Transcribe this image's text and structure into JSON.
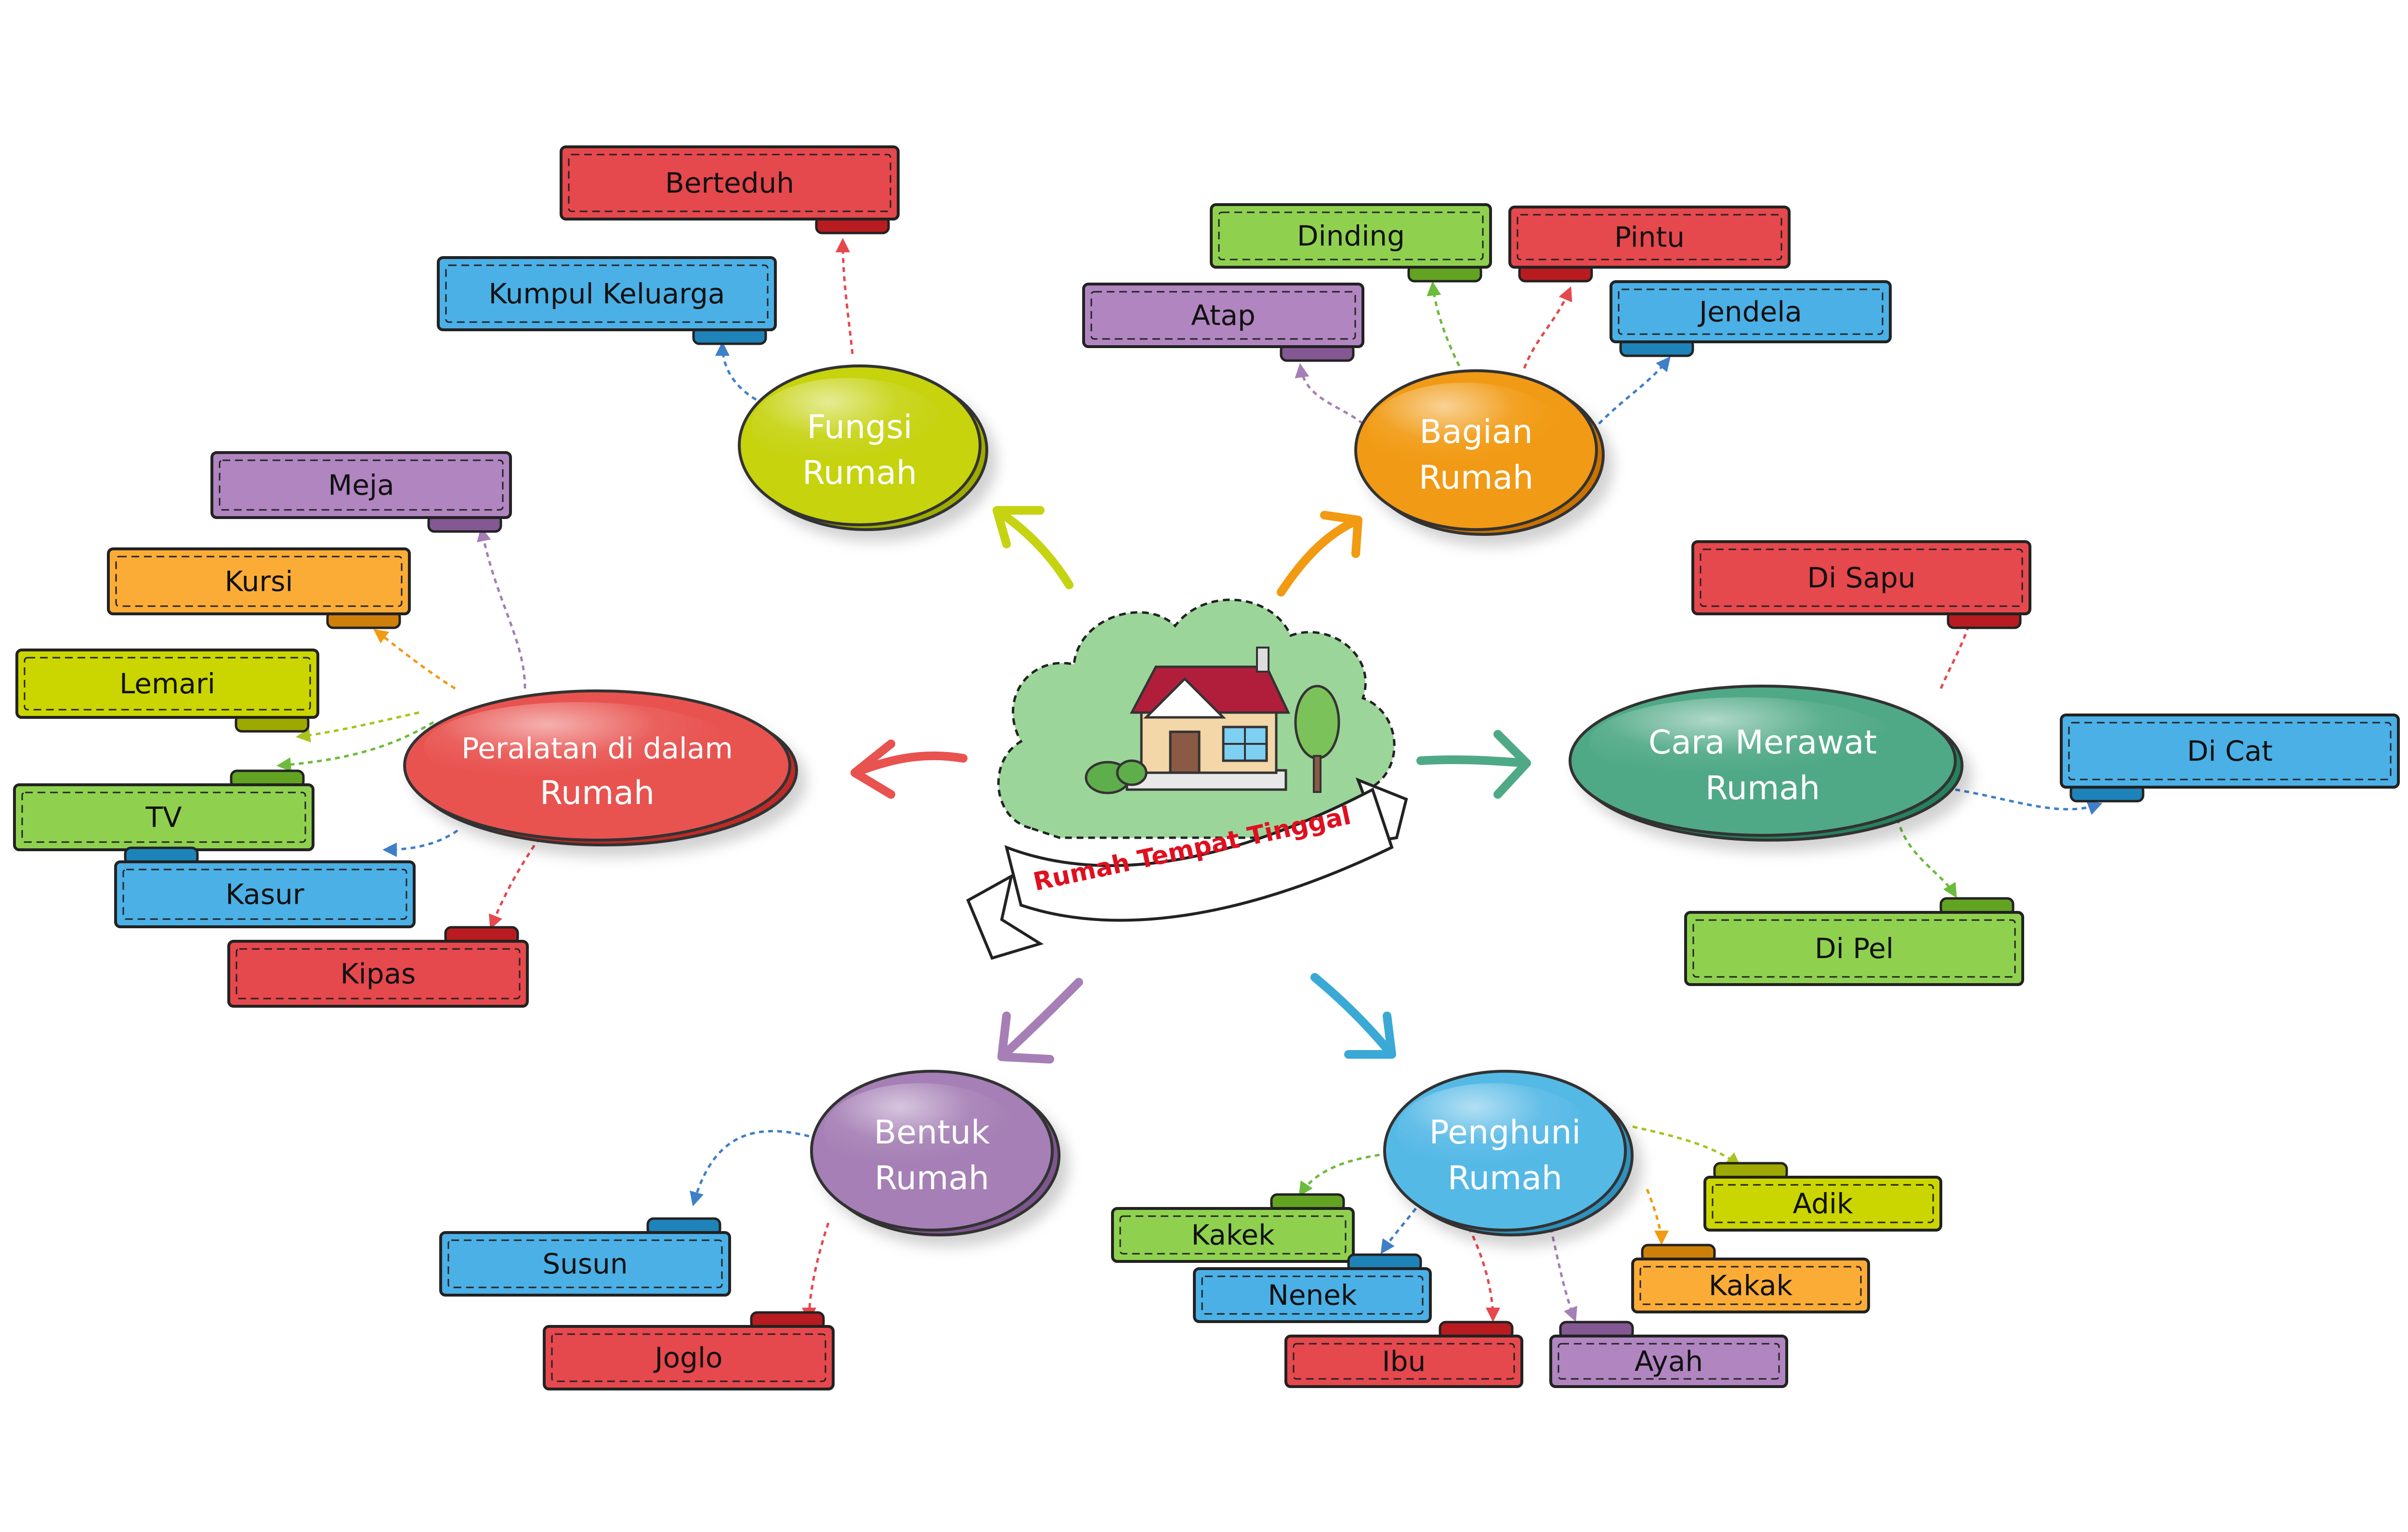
{
  "title": "Rumah Tempat Tinggal",
  "colors": {
    "red": "#e5484d",
    "blue": "#4bb0e6",
    "green": "#8fd14f",
    "purple": "#b085c0",
    "orange": "#fbac37",
    "lime": "#cbd600",
    "outline": "#222222"
  },
  "branches": {
    "fungsi": {
      "line1": "Fungsi",
      "line2": "Rumah",
      "color": "#c6d311",
      "leaves": [
        {
          "label": "Berteduh",
          "color": "red"
        },
        {
          "label": "Kumpul Keluarga",
          "color": "blue"
        }
      ]
    },
    "bagian": {
      "line1": "Bagian",
      "line2": "Rumah",
      "color": "#f19a12",
      "leaves": [
        {
          "label": "Dinding",
          "color": "green"
        },
        {
          "label": "Pintu",
          "color": "red"
        },
        {
          "label": "Atap",
          "color": "purple"
        },
        {
          "label": "Jendela",
          "color": "blue"
        }
      ]
    },
    "peralatan": {
      "line1": "Peralatan di dalam",
      "line2": "Rumah",
      "color": "#e8524f",
      "leaves": [
        {
          "label": "Meja",
          "color": "purple"
        },
        {
          "label": "Kursi",
          "color": "orange"
        },
        {
          "label": "Lemari",
          "color": "lime"
        },
        {
          "label": "TV",
          "color": "green"
        },
        {
          "label": "Kasur",
          "color": "blue"
        },
        {
          "label": "Kipas",
          "color": "red"
        }
      ]
    },
    "merawat": {
      "line1": "Cara Merawat",
      "line2": "Rumah",
      "color": "#4fa986",
      "leaves": [
        {
          "label": "Di Sapu",
          "color": "red"
        },
        {
          "label": "Di Cat",
          "color": "blue"
        },
        {
          "label": "Di Pel",
          "color": "green"
        }
      ]
    },
    "bentuk": {
      "line1": "Bentuk",
      "line2": "Rumah",
      "color": "#a57fb5",
      "leaves": [
        {
          "label": "Susun",
          "color": "blue"
        },
        {
          "label": "Joglo",
          "color": "red"
        }
      ]
    },
    "penghuni": {
      "line1": "Penghuni",
      "line2": "Rumah",
      "color": "#55b9e6",
      "leaves": [
        {
          "label": "Kakek",
          "color": "green"
        },
        {
          "label": "Nenek",
          "color": "blue"
        },
        {
          "label": "Ibu",
          "color": "red"
        },
        {
          "label": "Ayah",
          "color": "purple"
        },
        {
          "label": "Adik",
          "color": "lime"
        },
        {
          "label": "Kakak",
          "color": "orange"
        }
      ]
    }
  },
  "icons": {
    "center": "house-icon",
    "banner": "ribbon-banner"
  }
}
